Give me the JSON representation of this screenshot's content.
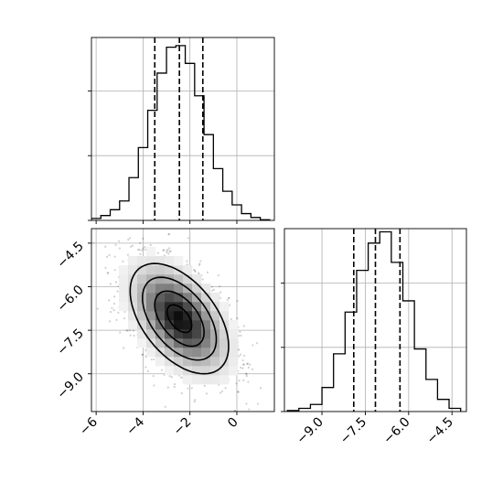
{
  "chart_data": {
    "type": "corner",
    "parameters": [
      {
        "histogram": {
          "bin_edges": [
            -6.2,
            -5.8,
            -5.4,
            -5.0,
            -4.6,
            -4.2,
            -3.8,
            -3.4,
            -3.0,
            -2.6,
            -2.2,
            -1.8,
            -1.4,
            -1.0,
            -0.6,
            -0.2,
            0.2,
            0.6,
            1.0,
            1.4
          ],
          "counts": [
            0.6,
            1.5,
            3.3,
            6.0,
            13.2,
            22.5,
            34.0,
            45.5,
            53.5,
            54.0,
            48.5,
            38.5,
            26.5,
            16.0,
            9.0,
            4.8,
            2.1,
            0.9,
            0.2
          ],
          "quantiles": [
            -3.5,
            -2.45,
            -1.45
          ],
          "xlim": [
            -6.2,
            1.6
          ],
          "ylim": [
            0,
            56.5
          ]
        },
        "tick_values": [
          -6,
          -4,
          -2,
          0
        ],
        "tick_labels": [
          "−6",
          "−4",
          "−2",
          "0"
        ]
      },
      {
        "histogram": {
          "bin_edges": [
            -10.2,
            -9.8,
            -9.4,
            -9.0,
            -8.6,
            -8.2,
            -7.8,
            -7.4,
            -7.0,
            -6.6,
            -6.2,
            -5.8,
            -5.4,
            -5.0,
            -4.6,
            -4.2
          ],
          "counts": [
            0.3,
            1.0,
            2.2,
            7.5,
            18.0,
            31.0,
            44.0,
            52.5,
            56.0,
            46.5,
            34.5,
            19.5,
            10.0,
            3.8,
            1.0
          ],
          "quantiles": [
            -7.9,
            -7.15,
            -6.3
          ],
          "xlim": [
            -10.3,
            -4.0
          ],
          "ylim": [
            0,
            57.0
          ]
        },
        "tick_values": [
          -9.0,
          -7.5,
          -6.0,
          -4.5
        ],
        "tick_labels": [
          "−9.0",
          "−7.5",
          "−6.0",
          "−4.5"
        ]
      }
    ],
    "joint": {
      "type": "2d-histogram-contour",
      "mean": [
        -2.45,
        -7.1
      ],
      "std": [
        1.05,
        0.95
      ],
      "correlation": -0.5,
      "contour_levels": 4,
      "xlim": [
        -6.2,
        1.6
      ],
      "ylim": [
        -10.3,
        -4.0
      ]
    },
    "grid": true
  }
}
